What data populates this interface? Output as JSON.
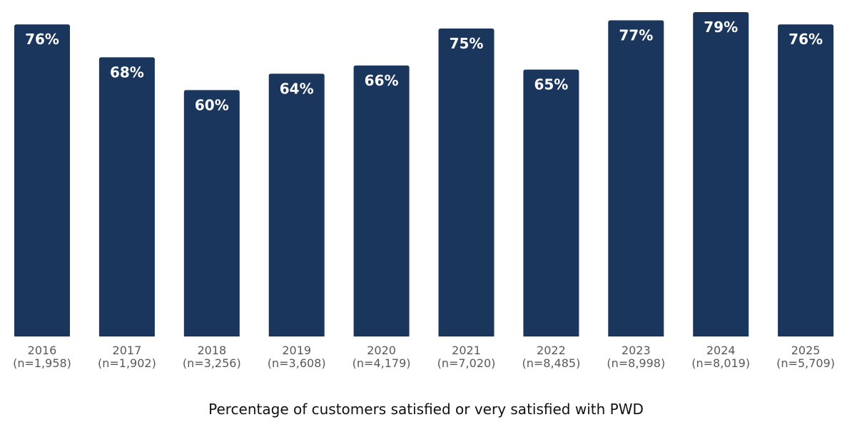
{
  "chart_data": {
    "type": "bar",
    "title": "Percentage of customers satisfied or very satisfied with PWD",
    "categories": [
      "2016",
      "2017",
      "2018",
      "2019",
      "2020",
      "2021",
      "2022",
      "2023",
      "2024",
      "2025"
    ],
    "sample_sizes": [
      "(n=1,958)",
      "(n=1,902)",
      "(n=3,256)",
      "(n=3,608)",
      "(n=4,179)",
      "(n=7,020)",
      "(n=8,485)",
      "(n=8,998)",
      "(n=8,019)",
      "(n=5,709)"
    ],
    "values": [
      76,
      68,
      60,
      64,
      66,
      75,
      65,
      77,
      79,
      76
    ],
    "value_labels": [
      "76%",
      "68%",
      "60%",
      "64%",
      "66%",
      "75%",
      "65%",
      "77%",
      "79%",
      "76%"
    ],
    "ylim": [
      0,
      100
    ],
    "grid": false,
    "legend": "none",
    "colors": {
      "bar": "#1a365d",
      "value_label": "#ffffff",
      "axis_label": "#595959"
    }
  }
}
